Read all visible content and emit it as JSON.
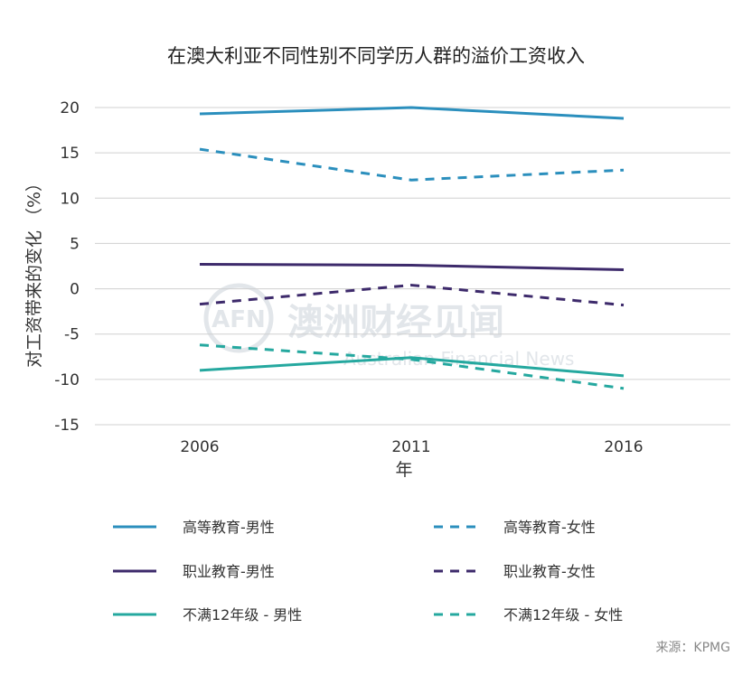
{
  "chart_data": {
    "type": "line",
    "title": "在澳大利亚不同性别不同学历人群的溢价工资收入",
    "xlabel": "年",
    "ylabel": "对工资带来的变化 （%）",
    "x": [
      "2006",
      "2011",
      "2016"
    ],
    "ylim": [
      -15,
      20
    ],
    "yticks": [
      "20",
      "15",
      "10",
      "5",
      "0",
      "-5",
      "-10",
      "-15"
    ],
    "ytick_values": [
      20,
      15,
      10,
      5,
      0,
      -5,
      -10,
      -15
    ],
    "grid": true,
    "legend_position": "bottom",
    "series": [
      {
        "name": "高等教育-男性",
        "values": [
          19.3,
          20.0,
          18.8
        ],
        "color": "#2b8fbd",
        "dashed": false
      },
      {
        "name": "高等教育-女性",
        "values": [
          15.4,
          12.0,
          13.1
        ],
        "color": "#2b8fbd",
        "dashed": true
      },
      {
        "name": "职业教育-男性",
        "values": [
          2.7,
          2.6,
          2.1
        ],
        "color": "#3d2a6b",
        "dashed": false
      },
      {
        "name": "职业教育-女性",
        "values": [
          -1.7,
          0.4,
          -1.8
        ],
        "color": "#3d2a6b",
        "dashed": true
      },
      {
        "name": "不满12年级 - 男性",
        "values": [
          -9.0,
          -7.6,
          -9.6
        ],
        "color": "#25a89f",
        "dashed": false
      },
      {
        "name": "不满12年级 - 女性",
        "values": [
          -6.2,
          -7.8,
          -11.0
        ],
        "color": "#25a89f",
        "dashed": true
      }
    ],
    "source": "来源：KPMG"
  },
  "watermark": {
    "logo": "AFN",
    "text": "澳洲财经见闻",
    "subtext": "Australian Financial News"
  }
}
